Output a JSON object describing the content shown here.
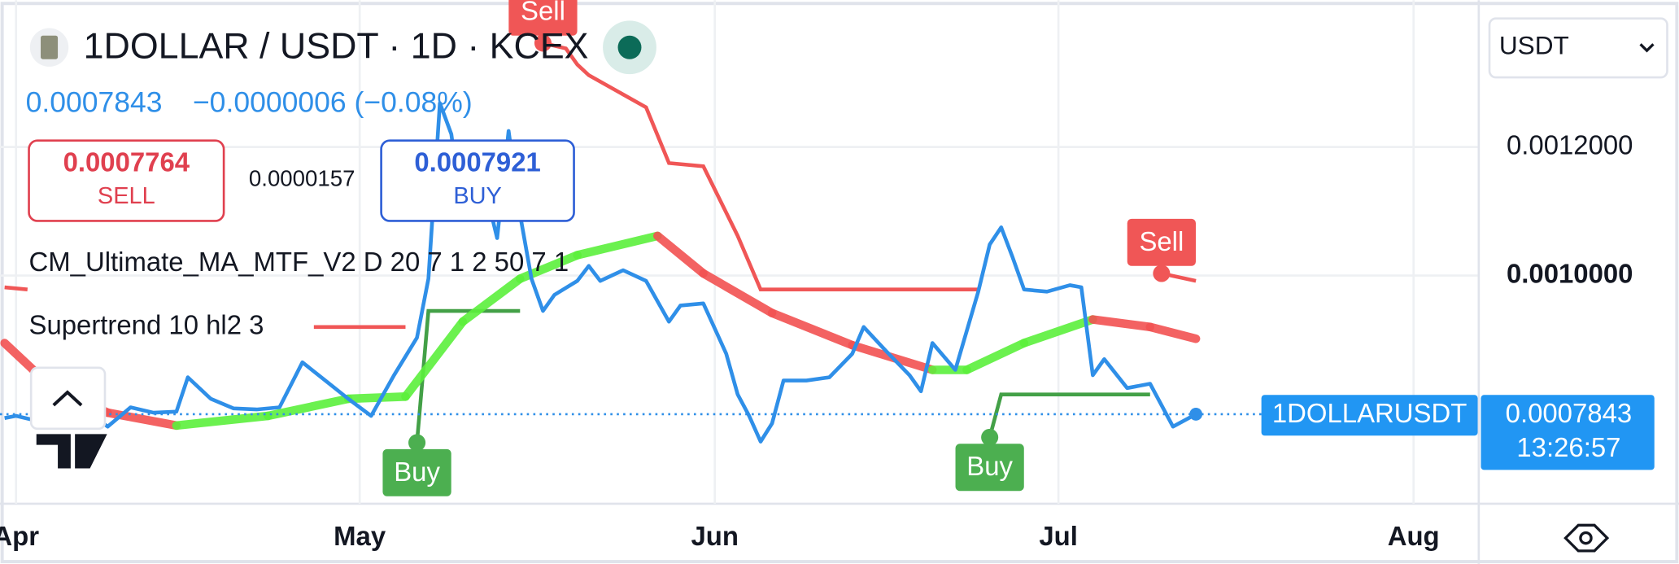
{
  "header": {
    "title": "1DOLLAR / USDT · 1D · KCEX",
    "price": "0.0007843",
    "change": "−0.0000006 (−0.08%)",
    "sell_price": "0.0007764",
    "sell_label": "SELL",
    "spread": "0.0000157",
    "buy_price": "0.0007921",
    "buy_label": "BUY",
    "indicator_1": "CM_Ultimate_MA_MTF_V2 D 20 7 1 2 50 7 1",
    "indicator_2": "Supertrend 10 hl2 3",
    "currency": "USDT"
  },
  "chart_data": {
    "type": "line",
    "xlim": [
      -1.4,
      127.6
    ],
    "xticks": [
      {
        "value": 0,
        "label": "Apr"
      },
      {
        "value": 30,
        "label": "May"
      },
      {
        "value": 61,
        "label": "Jun"
      },
      {
        "value": 91,
        "label": "Jul"
      },
      {
        "value": 122,
        "label": "Aug"
      }
    ],
    "ylim": [
      0.000645,
      0.0014283
    ],
    "yticks": [
      {
        "value": 0.0012,
        "label": "0.0012000"
      },
      {
        "value": 0.001,
        "label": "0.0010000"
      }
    ],
    "grid": true,
    "x": [
      -1,
      0,
      2,
      4,
      6,
      8,
      10,
      12,
      14,
      15,
      17,
      19,
      21,
      23,
      25,
      27,
      29,
      31,
      33,
      35,
      36,
      37,
      38,
      39,
      40,
      41,
      42,
      43,
      44,
      45,
      46,
      47,
      49,
      50,
      51,
      53,
      55,
      57,
      58,
      60,
      62,
      63,
      64,
      65,
      66,
      67,
      69,
      71,
      73,
      74,
      76,
      78,
      79,
      80,
      82,
      84,
      85,
      86,
      87,
      88,
      90,
      92,
      93,
      94,
      95,
      97,
      99,
      101,
      103
    ],
    "series": [
      {
        "name": "1DOLLARUSDT",
        "color": "#2f8fe8",
        "values": [
          0.0007783,
          0.0007817,
          0.0007733,
          0.0007817,
          0.0007917,
          0.000765,
          0.000795,
          0.0007867,
          0.0007883,
          0.0008417,
          0.0008083,
          0.0007933,
          0.0007917,
          0.000795,
          0.000865,
          0.0008367,
          0.0008083,
          0.0007817,
          0.000845,
          0.0009033,
          0.000995,
          0.0012683,
          0.00122,
          0.0010867,
          0.00112,
          0.0011317,
          0.0010583,
          0.001225,
          0.001095,
          0.000995,
          0.000945,
          0.00097,
          0.0009917,
          0.001015,
          0.0009917,
          0.0010083,
          0.0009917,
          0.0009283,
          0.0009533,
          0.0009567,
          0.0008783,
          0.000815,
          0.0007817,
          0.0007417,
          0.00077,
          0.0008367,
          0.0008367,
          0.0008417,
          0.0008783,
          0.00092,
          0.0008817,
          0.000845,
          0.00082,
          0.000895,
          0.0008533,
          0.000975,
          0.0010483,
          0.001075,
          0.0010283,
          0.0009783,
          0.000975,
          0.000985,
          0.0009817,
          0.000845,
          0.00087,
          0.000825,
          0.0008317,
          0.000765,
          0.0007843
        ]
      }
    ],
    "moving_average": {
      "color": "#5cf03c",
      "down_color": "#f25252",
      "x": [
        -1,
        3,
        8,
        14,
        22,
        29,
        34,
        39,
        44,
        49,
        56,
        60,
        66,
        73,
        80,
        83,
        88,
        94,
        99,
        103
      ],
      "values": [
        0.000895,
        0.0008283,
        0.0007867,
        0.0007667,
        0.0007817,
        0.0008083,
        0.0008117,
        0.0009283,
        0.000995,
        0.0010317,
        0.0010617,
        0.0010033,
        0.0009417,
        0.0008917,
        0.0008533,
        0.0008533,
        0.000895,
        0.0009317,
        0.00092,
        0.0009017
      ]
    },
    "supertrend": [
      {
        "color": "#f05656",
        "x": [
          -1,
          1,
          null,
          26,
          34,
          null,
          46,
          48,
          49,
          50,
          55,
          57,
          60,
          63,
          65,
          84,
          null,
          100,
          103
        ],
        "values": [
          0.0009817,
          0.0009783,
          null,
          0.00092,
          0.00092,
          null,
          0.0013617,
          0.0013533,
          0.0013283,
          0.0013117,
          0.0012617,
          0.001175,
          0.00117,
          0.0010617,
          0.0009783,
          0.0009783,
          null,
          0.0010033,
          0.0009917
        ]
      },
      {
        "color": "#43a047",
        "x": [
          35,
          36,
          44,
          null,
          85,
          86,
          99
        ],
        "values": [
          0.00074,
          0.000945,
          0.000945,
          null,
          0.0007483,
          0.000815,
          0.000815
        ]
      }
    ],
    "signals": [
      {
        "label": "Sell",
        "x": 46,
        "value": 0.0013617,
        "color": "#f05656"
      },
      {
        "label": "Buy",
        "x": 35,
        "value": 0.00074,
        "color": "#4caf50"
      },
      {
        "label": "Buy",
        "x": 85,
        "value": 0.0007483,
        "color": "#4caf50"
      },
      {
        "label": "Sell",
        "x": 100,
        "value": 0.0010033,
        "color": "#f05656"
      }
    ],
    "last_price": "0.0007843",
    "last_value": 0.0007843,
    "symbol": "1DOLLARUSDT",
    "countdown": "13:26:57"
  }
}
